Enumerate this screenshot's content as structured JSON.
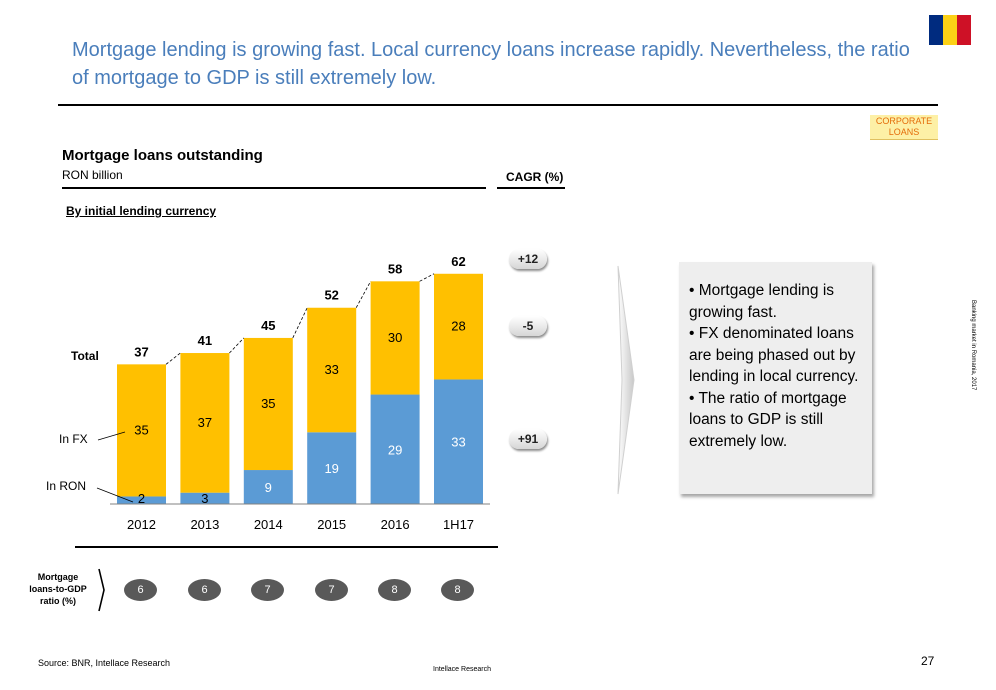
{
  "headline": "Mortgage lending is growing fast. Local currency loans increase rapidly. Nevertheless, the ratio of mortgage to GDP is still extremely low.",
  "flag_colors": [
    "#002b7f",
    "#fcd116",
    "#ce1126"
  ],
  "corporate_badge": [
    "CORPORATE",
    "LOANS"
  ],
  "chart_data": {
    "type": "bar",
    "stacked": true,
    "title": "Mortgage loans outstanding",
    "subtitle": "RON billion",
    "section_label": "By initial lending currency",
    "categories": [
      "2012",
      "2013",
      "2014",
      "2015",
      "2016",
      "1H17"
    ],
    "series": [
      {
        "name": "In RON",
        "color": "#5b9bd5",
        "values": [
          2,
          3,
          9,
          19,
          29,
          33
        ]
      },
      {
        "name": "In FX",
        "color": "#ffc000",
        "values": [
          35,
          37,
          35,
          33,
          30,
          28
        ]
      }
    ],
    "totals_label": "Total",
    "totals": [
      37,
      41,
      45,
      52,
      58,
      62
    ],
    "ylim": [
      0,
      62
    ],
    "grid": false,
    "legend": "left",
    "cagr": {
      "header": "CAGR (%)",
      "total": "+12",
      "fx": "-5",
      "ron": "+91"
    }
  },
  "ratio_row": {
    "label": [
      "Mortgage",
      "loans-to-GDP",
      "ratio (%)"
    ],
    "values": [
      6,
      6,
      7,
      7,
      8,
      8
    ]
  },
  "textbox": [
    "• Mortgage lending is growing fast.",
    "• FX denominated loans are being phased out by lending in local currency.",
    "• The ratio of mortgage loans to GDP is still extremely low."
  ],
  "side_text": "Banking market in Romania, 2017",
  "source": "Source: BNR, Intellace Research",
  "footer_center": "Intellace Research",
  "page_number": "27"
}
